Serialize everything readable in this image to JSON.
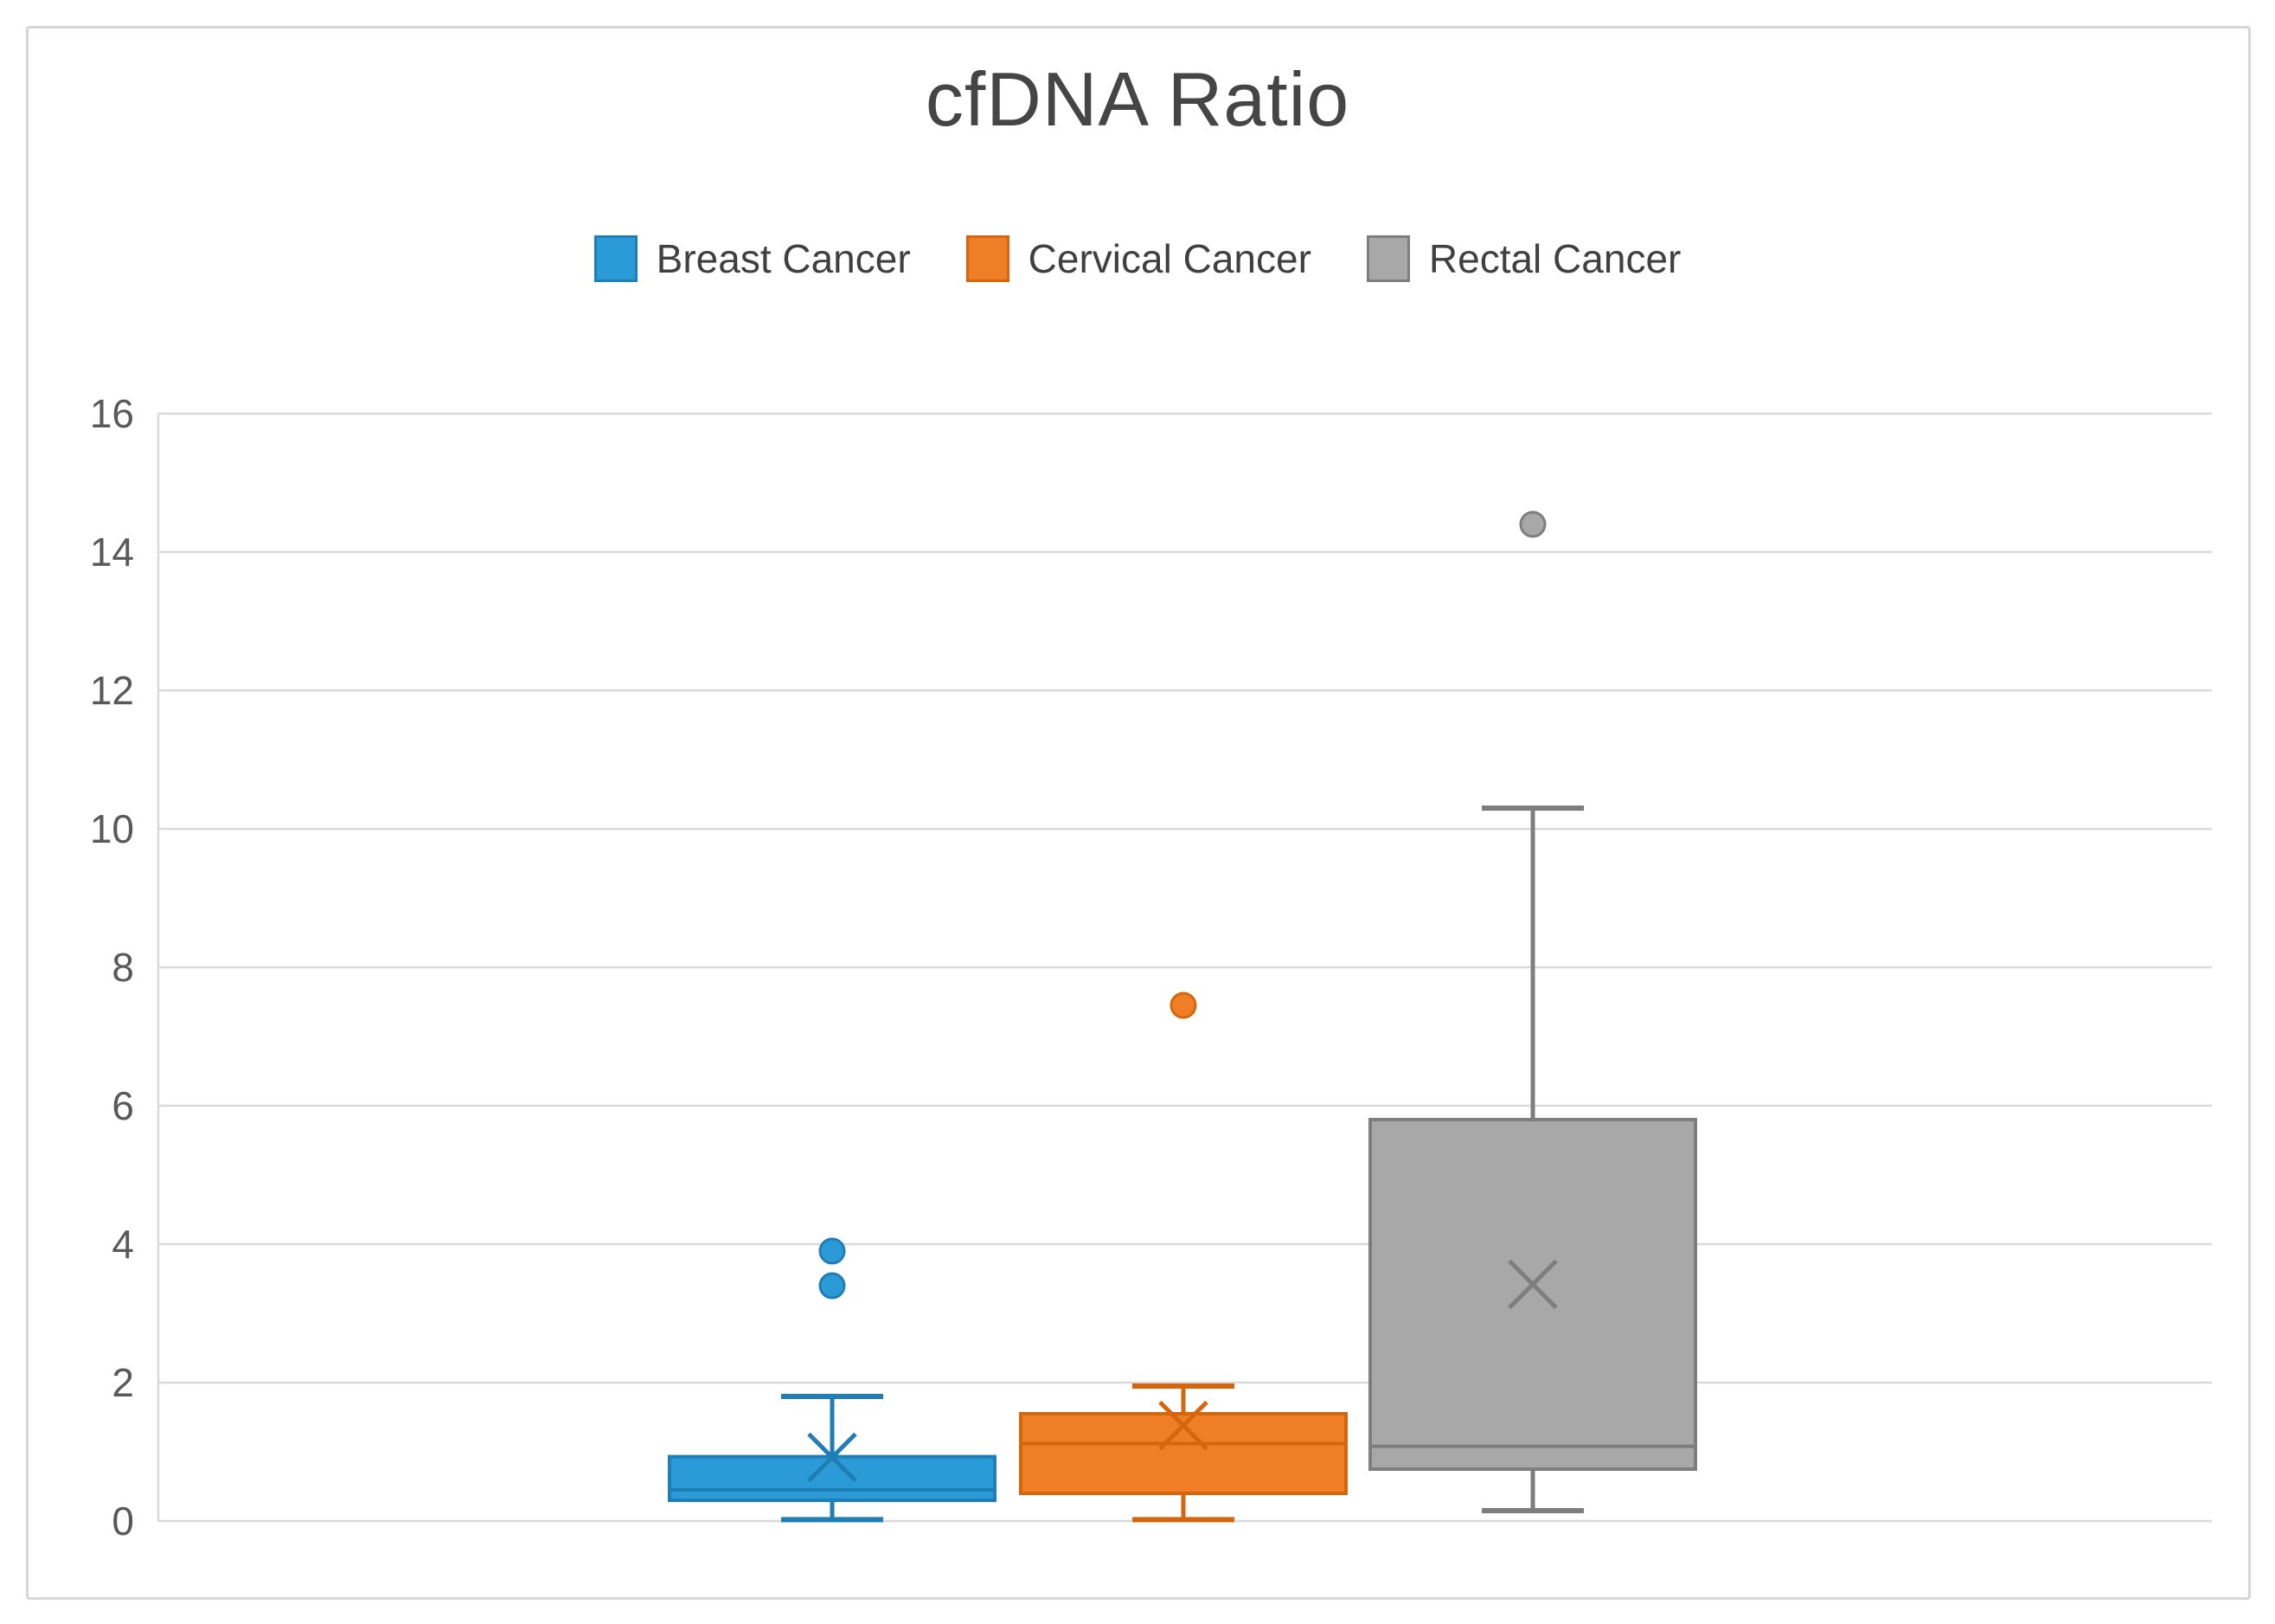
{
  "chart_data": {
    "type": "boxplot",
    "title": "cfDNA Ratio",
    "ylabel": "",
    "xlabel": "",
    "ylim": [
      0,
      16
    ],
    "yticks": [
      0,
      2,
      4,
      6,
      8,
      10,
      12,
      14,
      16
    ],
    "grid": true,
    "legend_position": "top",
    "colors": {
      "gridline": "#D9D9D9",
      "axis_tick_text": "#595959",
      "title_text": "#454545",
      "legend_text": "#404040",
      "chart_border": "#D6D6D6"
    },
    "series": [
      {
        "name": "Breast Cancer",
        "fill": "#2B9BD7",
        "stroke": "#1F7EB5",
        "whisker_low": 0.02,
        "q1": 0.3,
        "median": 0.45,
        "q3": 0.93,
        "whisker_high": 1.8,
        "mean": 0.92,
        "outliers": [
          3.4,
          3.9
        ]
      },
      {
        "name": "Cervical Cancer",
        "fill": "#F07E27",
        "stroke": "#D6660E",
        "whisker_low": 0.02,
        "q1": 0.4,
        "median": 1.12,
        "q3": 1.55,
        "whisker_high": 1.95,
        "mean": 1.38,
        "outliers": [
          7.45
        ]
      },
      {
        "name": "Rectal Cancer",
        "fill": "#A8A8A8",
        "stroke": "#7E7E7E",
        "whisker_low": 0.15,
        "q1": 0.75,
        "median": 1.08,
        "q3": 5.8,
        "whisker_high": 10.3,
        "mean": 3.42,
        "outliers": [
          14.4
        ]
      }
    ]
  }
}
